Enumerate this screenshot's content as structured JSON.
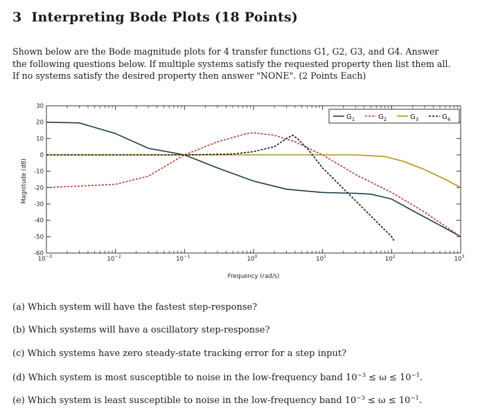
{
  "section": {
    "number": "3",
    "title": "Interpreting Bode Plots (18 Points)"
  },
  "intro": {
    "line1": "Shown below are the Bode magnitude plots for 4 transfer functions G1, G2, G3, and G4. Answer",
    "line2": "the following questions below. If multiple systems satisfy the requested property then list them all.",
    "line3": "If no systems satisfy the desired property then answer \"NONE\". (2 Points Each)"
  },
  "chart_data": {
    "type": "line",
    "xlabel": "Frequency (rad/s)",
    "ylabel": "Magnitude (dB)",
    "x_scale": "log",
    "xlim": [
      0.001,
      1000
    ],
    "ylim": [
      -60,
      30
    ],
    "x_ticks": [
      0.001,
      0.01,
      0.1,
      1,
      10,
      100,
      1000
    ],
    "x_tick_labels": [
      "10^-3",
      "10^-2",
      "10^-1",
      "10^0",
      "10^1",
      "10^2",
      "10^3"
    ],
    "y_ticks": [
      30,
      20,
      10,
      0,
      -10,
      -20,
      -30,
      -40,
      -50,
      -60
    ],
    "y_tick_labels": [
      "30",
      "20",
      "10",
      "0",
      "-10",
      "-20",
      "-30",
      "-40",
      "-50",
      "-60"
    ],
    "grid": false,
    "legend_position": "top-right",
    "series": [
      {
        "name": "G1",
        "color": "#1f3a4d",
        "style": "solid",
        "points": [
          [
            0.001,
            20
          ],
          [
            0.003,
            19.5
          ],
          [
            0.01,
            13
          ],
          [
            0.03,
            4
          ],
          [
            0.1,
            0
          ],
          [
            0.3,
            -8
          ],
          [
            1,
            -16
          ],
          [
            3,
            -21
          ],
          [
            10,
            -23
          ],
          [
            30,
            -23.5
          ],
          [
            50,
            -24
          ],
          [
            100,
            -27
          ],
          [
            200,
            -34
          ],
          [
            500,
            -43
          ],
          [
            1000,
            -50
          ]
        ]
      },
      {
        "name": "G2",
        "color": "#b5392c",
        "style": "dashed",
        "points": [
          [
            0.001,
            -20
          ],
          [
            0.01,
            -18
          ],
          [
            0.03,
            -13
          ],
          [
            0.1,
            0
          ],
          [
            0.3,
            8
          ],
          [
            0.8,
            13
          ],
          [
            1,
            13.5
          ],
          [
            2,
            12
          ],
          [
            4,
            8
          ],
          [
            7,
            3
          ],
          [
            10,
            0
          ],
          [
            30,
            -12
          ],
          [
            100,
            -23
          ],
          [
            300,
            -35
          ],
          [
            1000,
            -50
          ]
        ]
      },
      {
        "name": "G3",
        "color": "#b8900e",
        "style": "solid",
        "points": [
          [
            0.001,
            0
          ],
          [
            0.01,
            0
          ],
          [
            0.1,
            0
          ],
          [
            1,
            0
          ],
          [
            10,
            0
          ],
          [
            30,
            0
          ],
          [
            80,
            -1
          ],
          [
            150,
            -4
          ],
          [
            300,
            -9
          ],
          [
            600,
            -15
          ],
          [
            1000,
            -20
          ]
        ]
      },
      {
        "name": "G4",
        "color": "#111111",
        "style": "dashed",
        "points": [
          [
            0.001,
            0
          ],
          [
            0.01,
            0
          ],
          [
            0.1,
            0
          ],
          [
            0.5,
            0.5
          ],
          [
            1,
            2
          ],
          [
            2,
            5
          ],
          [
            3,
            10
          ],
          [
            3.7,
            12
          ],
          [
            4.3,
            10
          ],
          [
            6,
            4
          ],
          [
            10,
            -8
          ],
          [
            30,
            -28
          ],
          [
            100,
            -50
          ],
          [
            110,
            -53
          ]
        ]
      }
    ]
  },
  "questions": [
    {
      "label": "(a)",
      "text": "Which system will have the fastest step-response?"
    },
    {
      "label": "(b)",
      "text": "Which systems will have a oscillatory step-response?"
    },
    {
      "label": "(c)",
      "text": "Which systems have zero steady-state tracking error for a step input?"
    },
    {
      "label": "(d)",
      "text": "Which system is most susceptible to noise in the low-frequency band 10-3 ≤ ω ≤ 10-1."
    },
    {
      "label": "(e)",
      "text": "Which system is least susceptible to noise in the low-frequency band 10-3 ≤ ω ≤ 10-1."
    }
  ]
}
